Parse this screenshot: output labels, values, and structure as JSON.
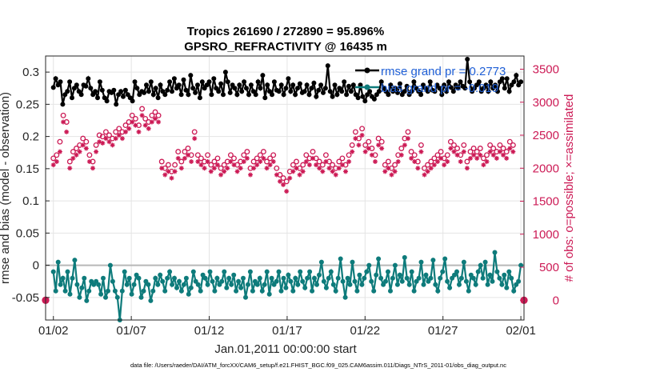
{
  "chart_data": {
    "type": "line",
    "title": "Tropics 261690 / 272890 = 95.896%",
    "subtitle": "GPSRO_REFRACTIVITY @ 16435 m",
    "xlabel": "Jan.01,2011 00:00:00 start",
    "ylabel_left": "rmse and bias (model - observation)",
    "ylabel_right": "# of obs: o=possible; ×=assimilated",
    "x_tick_labels": [
      "01/02",
      "01/07",
      "01/12",
      "01/17",
      "01/22",
      "01/27",
      "02/01"
    ],
    "x_tick_days": [
      1,
      6,
      11,
      16,
      21,
      26,
      31
    ],
    "xlim_days": [
      0.5,
      31.2
    ],
    "y_left_ticks": [
      "-0.05",
      "0",
      "0.05",
      "0.1",
      "0.15",
      "0.2",
      "0.25",
      "0.3"
    ],
    "y_left_tick_values": [
      -0.05,
      0,
      0.05,
      0.1,
      0.15,
      0.2,
      0.25,
      0.3
    ],
    "ylim_left": [
      -0.085,
      0.325
    ],
    "y_right_ticks": [
      "0",
      "500",
      "1000",
      "1500",
      "2000",
      "2500",
      "3000",
      "3500"
    ],
    "y_right_tick_values": [
      0,
      500,
      1000,
      1500,
      2000,
      2500,
      3000,
      3500
    ],
    "ylim_right": [
      -300,
      3700
    ],
    "legend": [
      {
        "label": "rmse grand pr = 0.2773",
        "color": "#000000",
        "marker": "circle"
      },
      {
        "label": "bias grand pr = -0.019",
        "color": "#0e7b7b",
        "marker": "circle"
      }
    ],
    "series": [
      {
        "name": "rmse",
        "axis": "left",
        "color": "#000000",
        "values": [
          0.276,
          0.29,
          0.28,
          0.285,
          0.25,
          0.265,
          0.27,
          0.285,
          0.26,
          0.275,
          0.28,
          0.27,
          0.265,
          0.28,
          0.278,
          0.29,
          0.275,
          0.265,
          0.27,
          0.26,
          0.285,
          0.272,
          0.26,
          0.255,
          0.27,
          0.268,
          0.272,
          0.25,
          0.265,
          0.27,
          0.262,
          0.272,
          0.265,
          0.26,
          0.255,
          0.285,
          0.275,
          0.265,
          0.27,
          0.268,
          0.28,
          0.27,
          0.285,
          0.265,
          0.275,
          0.26,
          0.28,
          0.27,
          0.265,
          0.272,
          0.285,
          0.27,
          0.29,
          0.275,
          0.28,
          0.265,
          0.288,
          0.272,
          0.265,
          0.295,
          0.275,
          0.268,
          0.28,
          0.26,
          0.285,
          0.275,
          0.28,
          0.285,
          0.265,
          0.29,
          0.275,
          0.27,
          0.282,
          0.265,
          0.3,
          0.285,
          0.268,
          0.28,
          0.275,
          0.265,
          0.28,
          0.27,
          0.285,
          0.275,
          0.265,
          0.28,
          0.27,
          0.265,
          0.285,
          0.275,
          0.295,
          0.26,
          0.28,
          0.27,
          0.265,
          0.285,
          0.272,
          0.27,
          0.28,
          0.265,
          0.275,
          0.29,
          0.27,
          0.28,
          0.265,
          0.275,
          0.282,
          0.268,
          0.27,
          0.28,
          0.265,
          0.275,
          0.283,
          0.262,
          0.272,
          0.28,
          0.268,
          0.275,
          0.31,
          0.27,
          0.262,
          0.28,
          0.265,
          0.275,
          0.27,
          0.285,
          0.265,
          0.278,
          0.27,
          0.28,
          0.265,
          0.26,
          0.28,
          0.262,
          0.255,
          0.265,
          0.27,
          0.262,
          0.258,
          0.265,
          0.27,
          0.285,
          0.275,
          0.27,
          0.265,
          0.28,
          0.27,
          0.275,
          0.268,
          0.282,
          0.265,
          0.27,
          0.278,
          0.265,
          0.27,
          0.285,
          0.275,
          0.27,
          0.265,
          0.28,
          0.275,
          0.27,
          0.285,
          0.272,
          0.27,
          0.28,
          0.275,
          0.265,
          0.28,
          0.27,
          0.285,
          0.276,
          0.27,
          0.28,
          0.275,
          0.285,
          0.278,
          0.275,
          0.32,
          0.285,
          0.27,
          0.275,
          0.28,
          0.285,
          0.27,
          0.275,
          0.28,
          0.27,
          0.285,
          0.275,
          0.28,
          0.27,
          0.285,
          0.29,
          0.275,
          0.29,
          0.27,
          0.28,
          0.285,
          0.295,
          0.28,
          0.285
        ]
      },
      {
        "name": "bias",
        "axis": "left",
        "color": "#0e7b7b",
        "values": [
          -0.01,
          -0.04,
          0.005,
          -0.03,
          -0.02,
          -0.04,
          -0.01,
          -0.045,
          -0.02,
          0.008,
          -0.03,
          -0.05,
          -0.035,
          -0.02,
          -0.055,
          -0.04,
          -0.025,
          -0.03,
          -0.025,
          -0.03,
          -0.045,
          -0.02,
          -0.05,
          -0.04,
          0.0,
          -0.025,
          -0.04,
          -0.05,
          -0.085,
          -0.04,
          -0.01,
          -0.03,
          -0.02,
          -0.045,
          -0.03,
          -0.015,
          -0.02,
          -0.05,
          -0.04,
          -0.025,
          -0.03,
          -0.055,
          -0.04,
          -0.02,
          -0.03,
          -0.015,
          -0.025,
          -0.04,
          -0.02,
          -0.01,
          -0.03,
          -0.02,
          -0.035,
          -0.025,
          -0.04,
          -0.03,
          -0.02,
          -0.045,
          -0.035,
          -0.01,
          -0.025,
          -0.03,
          -0.04,
          -0.015,
          -0.02,
          -0.03,
          -0.01,
          -0.025,
          -0.04,
          -0.02,
          -0.03,
          -0.025,
          -0.01,
          -0.035,
          -0.02,
          -0.03,
          -0.015,
          -0.04,
          -0.025,
          -0.035,
          -0.02,
          -0.05,
          -0.03,
          -0.01,
          -0.04,
          -0.025,
          -0.03,
          -0.02,
          -0.04,
          -0.03,
          -0.01,
          -0.045,
          -0.02,
          -0.03,
          -0.025,
          -0.01,
          -0.04,
          -0.02,
          -0.035,
          -0.015,
          -0.025,
          -0.04,
          -0.02,
          -0.03,
          -0.01,
          -0.025,
          -0.035,
          -0.02,
          -0.01,
          -0.04,
          -0.02,
          -0.03,
          -0.015,
          0.005,
          -0.025,
          -0.035,
          -0.02,
          -0.01,
          -0.03,
          -0.04,
          -0.02,
          0.01,
          -0.025,
          -0.05,
          -0.02,
          -0.03,
          0.005,
          -0.025,
          -0.04,
          -0.015,
          -0.03,
          -0.02,
          -0.01,
          0.0,
          -0.025,
          -0.04,
          -0.015,
          0.01,
          -0.02,
          -0.03,
          -0.025,
          -0.01,
          -0.04,
          -0.02,
          0.0,
          -0.03,
          -0.015,
          -0.025,
          0.012,
          -0.02,
          -0.03,
          -0.01,
          -0.04,
          -0.025,
          -0.02,
          0.005,
          -0.03,
          -0.015,
          -0.025,
          -0.02,
          0.008,
          -0.03,
          -0.04,
          -0.02,
          -0.01,
          0.01,
          -0.025,
          -0.035,
          -0.02,
          -0.015,
          -0.01,
          -0.03,
          -0.02,
          0.005,
          -0.025,
          -0.04,
          -0.015,
          -0.02,
          -0.03,
          -0.01,
          0.0,
          -0.02,
          0.005,
          -0.03,
          -0.015,
          -0.025,
          0.02,
          -0.01,
          -0.02,
          -0.03,
          -0.015,
          -0.035,
          -0.01,
          -0.02,
          -0.04,
          -0.03,
          -0.025,
          0.0
        ]
      },
      {
        "name": "obs possible",
        "axis": "right",
        "color": "#cc1a55",
        "marker": "o",
        "values": [
          0,
          2150,
          2200,
          2400,
          2800,
          2700,
          2100,
          2250,
          2300,
          2350,
          2450,
          2400,
          2200,
          2100,
          2350,
          2500,
          2480,
          2550,
          2500,
          2450,
          2550,
          2600,
          2550,
          2650,
          2700,
          2800,
          2750,
          2650,
          2900,
          2750,
          2700,
          2800,
          2850,
          2800,
          2100,
          2000,
          2050,
          1950,
          2050,
          2250,
          2100,
          2250,
          2300,
          2200,
          2550,
          2200,
          2150,
          2100,
          2200,
          2050,
          2100,
          2150,
          2000,
          2050,
          2100,
          2200,
          2150,
          2050,
          2100,
          2200,
          2250,
          2000,
          2100,
          2150,
          2200,
          2250,
          2100,
          2150,
          2200,
          2000,
          1900,
          1850,
          1800,
          1950,
          2050,
          2100,
          2000,
          2050,
          2200,
          2150,
          2250,
          2150,
          2100,
          2050,
          2200,
          2100,
          2050,
          2000,
          2100,
          2150,
          2050,
          2200,
          2350,
          2550,
          2450,
          2600,
          2350,
          2400,
          2300,
          2200,
          2450,
          2400,
          2050,
          2100,
          2000,
          2050,
          2200,
          2300,
          2450,
          2550,
          2250,
          2200,
          2100,
          2350,
          2000,
          2050,
          2100,
          2150,
          2200,
          2250,
          2150,
          2200,
          2400,
          2350,
          2300,
          2200,
          2350,
          2100,
          2250,
          2300,
          2250,
          2300,
          2150,
          2200,
          2350,
          2300,
          2250,
          2350,
          2300,
          2250,
          2400,
          2350,
          0
        ]
      },
      {
        "name": "obs assimilated",
        "axis": "right",
        "color": "#cc1a55",
        "marker": "x",
        "values": [
          0,
          2050,
          2100,
          2250,
          2700,
          2550,
          2000,
          2150,
          2200,
          2250,
          2350,
          2300,
          2100,
          2000,
          2250,
          2400,
          2380,
          2450,
          2400,
          2350,
          2450,
          2500,
          2450,
          2550,
          2600,
          2700,
          2650,
          2550,
          2800,
          2650,
          2600,
          2700,
          2750,
          2700,
          2000,
          1900,
          1950,
          1850,
          1950,
          2150,
          2000,
          2150,
          2200,
          2100,
          2450,
          2100,
          2050,
          2000,
          2100,
          1950,
          2000,
          2050,
          1900,
          1950,
          2000,
          2100,
          2050,
          1950,
          2000,
          2100,
          2150,
          1900,
          2000,
          2050,
          2100,
          2150,
          2000,
          2050,
          2100,
          1900,
          1800,
          1750,
          1650,
          1850,
          1950,
          2000,
          1900,
          1950,
          2100,
          2050,
          2150,
          2050,
          2000,
          1950,
          2100,
          2000,
          1950,
          1900,
          2000,
          2050,
          1950,
          2100,
          2250,
          2450,
          2350,
          2500,
          2250,
          2300,
          2200,
          2100,
          2350,
          2300,
          1950,
          2000,
          1900,
          1950,
          2100,
          2200,
          2350,
          2450,
          2150,
          2100,
          2000,
          2250,
          1900,
          1950,
          2000,
          2050,
          2100,
          2150,
          2050,
          2100,
          2300,
          2250,
          2200,
          2100,
          2250,
          2000,
          2150,
          2200,
          2150,
          2200,
          2050,
          2100,
          2250,
          2200,
          2150,
          2250,
          2200,
          2150,
          2300,
          2250,
          0
        ]
      }
    ],
    "grid": true
  },
  "footer": "data file: /Users/raeder/DAI/ATM_forcXX/CAM6_setup/f.e21.FHIST_BGC.f09_025.CAM6assim.011/Diags_NTrS_2011-01/obs_diag_output.nc"
}
